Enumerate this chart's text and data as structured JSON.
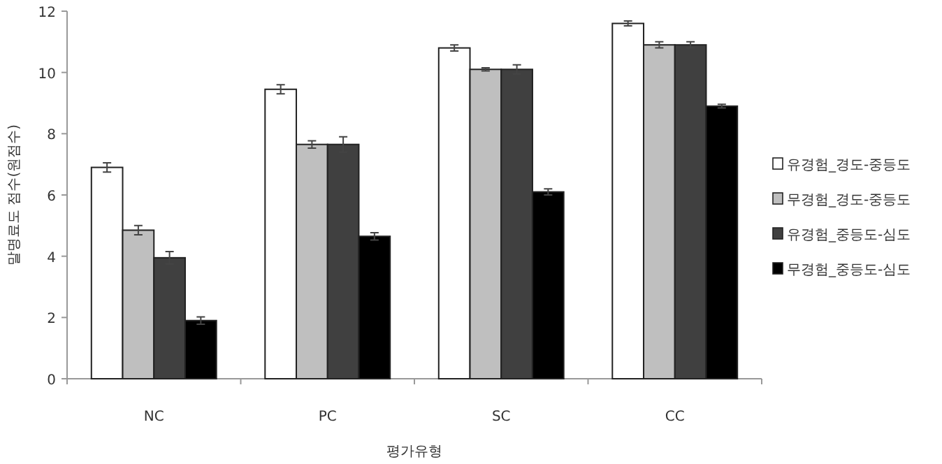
{
  "chart_data": {
    "type": "bar",
    "xlabel": "평가유형",
    "ylabel": "말명료도 점수(원점수)",
    "categories": [
      "NC",
      "PC",
      "SC",
      "CC"
    ],
    "ylim": [
      0,
      12
    ],
    "yticks": [
      0,
      2,
      4,
      6,
      8,
      10,
      12
    ],
    "legend": "right",
    "grid": false,
    "series": [
      {
        "name": "유경험_경도-중등도",
        "color": "#ffffff",
        "values": [
          6.9,
          9.45,
          10.8,
          11.6
        ],
        "errors": [
          0.15,
          0.15,
          0.1,
          0.08
        ]
      },
      {
        "name": "무경험_경도-중등도",
        "color": "#bfbfbf",
        "values": [
          4.85,
          7.65,
          10.1,
          10.9
        ],
        "errors": [
          0.15,
          0.12,
          0.05,
          0.1
        ]
      },
      {
        "name": "유경험_중등도-심도",
        "color": "#404040",
        "values": [
          3.95,
          7.65,
          10.1,
          10.9
        ],
        "errors": [
          0.2,
          0.25,
          0.15,
          0.1
        ]
      },
      {
        "name": "무경험_중등도-심도",
        "color": "#000000",
        "values": [
          1.9,
          4.65,
          6.1,
          8.9
        ],
        "errors": [
          0.12,
          0.12,
          0.1,
          0.06
        ]
      }
    ]
  }
}
